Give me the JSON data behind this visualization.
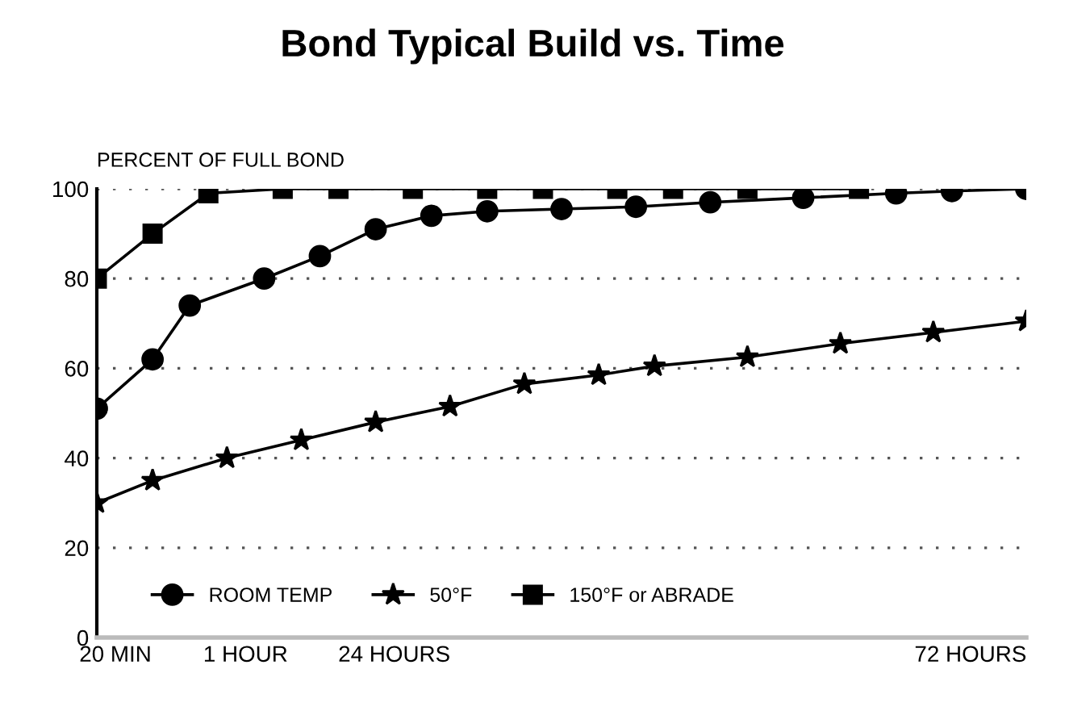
{
  "chart_data": {
    "type": "line",
    "title": "Bond Typical Build vs. Time",
    "ylabel": "PERCENT OF FULL BOND",
    "categories": [
      null,
      "20 MIN",
      null,
      null,
      null,
      null,
      null,
      null,
      "1 HOUR",
      null,
      null,
      null,
      null,
      null,
      null,
      null,
      "24 HOURS",
      null,
      null,
      null,
      null,
      null,
      null,
      null,
      null,
      null,
      null,
      null,
      null,
      null,
      null,
      null,
      null,
      null,
      null,
      null,
      null,
      null,
      null,
      null,
      null,
      null,
      null,
      null,
      null,
      null,
      null,
      "72 HOURS",
      null,
      null,
      null
    ],
    "ylim": [
      0,
      100
    ],
    "yticks": [
      0,
      20,
      40,
      60,
      80,
      100
    ],
    "grid": "y",
    "legend": "bottom left",
    "line_style": "solid",
    "series": [
      {
        "name": "ROOM TEMP",
        "color": "#000000",
        "marker": "circle",
        "values": [
          51,
          null,
          null,
          62,
          null,
          74,
          null,
          null,
          null,
          80,
          null,
          null,
          85,
          null,
          null,
          91,
          null,
          null,
          94,
          null,
          null,
          95,
          null,
          null,
          null,
          95.5,
          null,
          null,
          null,
          96,
          null,
          null,
          null,
          97,
          null,
          null,
          null,
          null,
          98,
          null,
          null,
          null,
          null,
          99,
          null,
          null,
          99.5,
          null,
          null,
          null,
          100
        ]
      },
      {
        "name": "50°F",
        "color": "#000000",
        "marker": "star",
        "values": [
          30,
          null,
          null,
          35,
          null,
          null,
          null,
          40,
          null,
          null,
          null,
          44,
          null,
          null,
          null,
          48,
          null,
          null,
          null,
          51.5,
          null,
          null,
          null,
          56.5,
          null,
          null,
          null,
          58.5,
          null,
          null,
          60.5,
          null,
          null,
          null,
          null,
          62.5,
          null,
          null,
          null,
          null,
          65.5,
          null,
          null,
          null,
          null,
          68,
          null,
          null,
          null,
          null,
          70.5
        ]
      },
      {
        "name": "150°F or ABRADE",
        "color": "#000000",
        "marker": "square",
        "values": [
          80,
          null,
          null,
          90,
          null,
          null,
          99,
          null,
          null,
          null,
          100,
          null,
          null,
          100,
          null,
          null,
          null,
          100,
          null,
          null,
          null,
          100,
          null,
          null,
          100,
          null,
          null,
          null,
          100,
          null,
          null,
          100,
          null,
          null,
          null,
          100,
          null,
          null,
          null,
          null,
          null,
          100,
          null,
          null,
          null,
          null,
          null,
          null,
          null,
          null,
          null
        ]
      }
    ]
  }
}
